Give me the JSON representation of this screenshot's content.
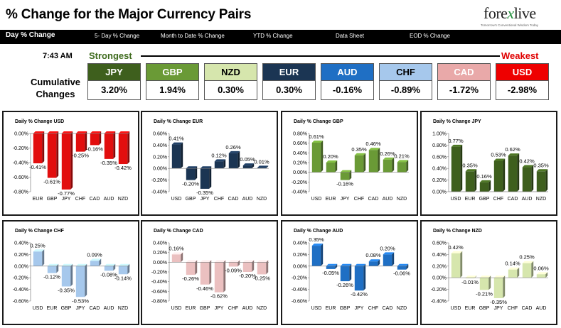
{
  "header": {
    "title": "% Change for the Major Currency Pairs",
    "logo": {
      "brand_left": "fore",
      "brand_x": "x",
      "brand_right": "live",
      "tagline": "Tomorrow's Conventional Wisdom Today"
    }
  },
  "nav": [
    {
      "label": "Day % Change",
      "active": true
    },
    {
      "label": "5- Day % Change"
    },
    {
      "label": "Month to Date % Change"
    },
    {
      "label": "YTD % Change"
    },
    {
      "label": "Data Sheet"
    },
    {
      "label": "EOD % Change"
    }
  ],
  "strength": {
    "time": "7:43 AM",
    "strongest": "Strongest",
    "weakest": "Weakest",
    "cumulative_label": "Cumulative Changes",
    "currencies": [
      {
        "code": "JPY",
        "value": "3.20%",
        "color": "#3e5f1d",
        "text_color": "#ffffff"
      },
      {
        "code": "GBP",
        "value": "1.94%",
        "color": "#6a9a36",
        "text_color": "#ffffff"
      },
      {
        "code": "NZD",
        "value": "0.30%",
        "color": "#d6e6ad",
        "text_color": "#000000"
      },
      {
        "code": "EUR",
        "value": "0.30%",
        "color": "#1b3553",
        "text_color": "#ffffff"
      },
      {
        "code": "AUD",
        "value": "-0.16%",
        "color": "#1f6fc4",
        "text_color": "#ffffff"
      },
      {
        "code": "CHF",
        "value": "-0.89%",
        "color": "#a6c8ec",
        "text_color": "#000000"
      },
      {
        "code": "CAD",
        "value": "-1.72%",
        "color": "#e9a9a9",
        "text_color": "#ffffff"
      },
      {
        "code": "USD",
        "value": "-2.98%",
        "color": "#ee0000",
        "text_color": "#ffffff"
      }
    ]
  },
  "chart_data": [
    {
      "type": "bar",
      "title": "Daily % Change USD",
      "color": "#e20e0e",
      "categories": [
        "EUR",
        "GBP",
        "JPY",
        "CHF",
        "CAD",
        "AUD",
        "NZD"
      ],
      "values": [
        -0.41,
        -0.61,
        -0.77,
        -0.25,
        -0.16,
        -0.35,
        -0.42
      ],
      "labels": [
        "-0.41%",
        "-0.61%",
        "-0.77%",
        "-0.25%",
        "-0.16%",
        "-0.35%",
        "-0.42%"
      ],
      "ylim": [
        -0.8,
        0.0
      ],
      "ticks": [
        "0.00%",
        "-0.20%",
        "-0.40%",
        "-0.60%",
        "-0.80%"
      ]
    },
    {
      "type": "bar",
      "title": "Daily % Change EUR",
      "color": "#1b3553",
      "categories": [
        "USD",
        "GBP",
        "JPY",
        "CHF",
        "CAD",
        "AUD",
        "NZD"
      ],
      "values": [
        0.41,
        -0.2,
        -0.35,
        0.12,
        0.26,
        0.05,
        0.01
      ],
      "labels": [
        "0.41%",
        "-0.20%",
        "-0.35%",
        "0.12%",
        "0.26%",
        "0.05%",
        "0.01%"
      ],
      "ylim": [
        -0.4,
        0.6
      ],
      "ticks": [
        "0.60%",
        "0.40%",
        "0.20%",
        "0.00%",
        "-0.20%",
        "-0.40%"
      ]
    },
    {
      "type": "bar",
      "title": "Daily % Change GBP",
      "color": "#6a9a36",
      "categories": [
        "USD",
        "EUR",
        "JPY",
        "CHF",
        "CAD",
        "AUD",
        "NZD"
      ],
      "values": [
        0.61,
        0.2,
        -0.16,
        0.35,
        0.46,
        0.26,
        0.21
      ],
      "labels": [
        "0.61%",
        "0.20%",
        "-0.16%",
        "0.35%",
        "0.46%",
        "0.26%",
        "0.21%"
      ],
      "ylim": [
        -0.4,
        0.8
      ],
      "ticks": [
        "0.80%",
        "0.60%",
        "0.40%",
        "0.20%",
        "0.00%",
        "-0.20%",
        "-0.40%"
      ]
    },
    {
      "type": "bar",
      "title": "Daily % Change JPY",
      "color": "#3e5f1d",
      "categories": [
        "USD",
        "EUR",
        "GBP",
        "CHF",
        "CAD",
        "AUD",
        "NZD"
      ],
      "values": [
        0.77,
        0.35,
        0.16,
        0.53,
        0.62,
        0.42,
        0.35
      ],
      "labels": [
        "0.77%",
        "0.35%",
        "0.16%",
        "0.53%",
        "0.62%",
        "0.42%",
        "0.35%"
      ],
      "ylim": [
        0.0,
        1.0
      ],
      "ticks": [
        "1.00%",
        "0.80%",
        "0.60%",
        "0.40%",
        "0.20%",
        "0.00%"
      ]
    },
    {
      "type": "bar",
      "title": "Daily % Change CHF",
      "color": "#a6c8ec",
      "categories": [
        "USD",
        "EUR",
        "GBP",
        "JPY",
        "CAD",
        "AUD",
        "NZD"
      ],
      "values": [
        0.25,
        -0.12,
        -0.35,
        -0.53,
        0.09,
        -0.08,
        -0.14
      ],
      "labels": [
        "0.25%",
        "-0.12%",
        "-0.35%",
        "-0.53%",
        "0.09%",
        "-0.08%",
        "-0.14%"
      ],
      "ylim": [
        -0.6,
        0.4
      ],
      "ticks": [
        "0.40%",
        "0.20%",
        "0.00%",
        "-0.20%",
        "-0.40%",
        "-0.60%"
      ]
    },
    {
      "type": "bar",
      "title": "Daily % Change CAD",
      "color": "#ebc0c0",
      "categories": [
        "USD",
        "EUR",
        "GBP",
        "JPY",
        "CHF",
        "AUD",
        "NZD"
      ],
      "values": [
        0.16,
        -0.26,
        -0.46,
        -0.62,
        -0.09,
        -0.2,
        -0.25
      ],
      "labels": [
        "0.16%",
        "-0.26%",
        "-0.46%",
        "-0.62%",
        "-0.09%",
        "-0.20%",
        "-0.25%"
      ],
      "ylim": [
        -0.8,
        0.4
      ],
      "ticks": [
        "0.40%",
        "0.20%",
        "0.00%",
        "-0.20%",
        "-0.40%",
        "-0.60%",
        "-0.80%"
      ]
    },
    {
      "type": "bar",
      "title": "Daily % Change AUD",
      "color": "#1f6fc4",
      "categories": [
        "USD",
        "EUR",
        "GBP",
        "JPY",
        "CHF",
        "CAD",
        "NZD"
      ],
      "values": [
        0.35,
        -0.05,
        -0.26,
        -0.42,
        0.08,
        0.2,
        -0.06
      ],
      "labels": [
        "0.35%",
        "-0.05%",
        "-0.26%",
        "-0.42%",
        "0.08%",
        "0.20%",
        "-0.06%"
      ],
      "ylim": [
        -0.6,
        0.4
      ],
      "ticks": [
        "0.40%",
        "0.20%",
        "0.00%",
        "-0.20%",
        "-0.40%",
        "-0.60%"
      ]
    },
    {
      "type": "bar",
      "title": "Daily % Change NZD",
      "color": "#d6e6ad",
      "categories": [
        "USD",
        "EUR",
        "GBP",
        "JPY",
        "CHF",
        "CAD",
        "AUD"
      ],
      "values": [
        0.42,
        -0.01,
        -0.21,
        -0.35,
        0.14,
        0.25,
        0.06
      ],
      "labels": [
        "0.42%",
        "-0.01%",
        "-0.21%",
        "-0.35%",
        "0.14%",
        "0.25%",
        "0.06%"
      ],
      "ylim": [
        -0.4,
        0.6
      ],
      "ticks": [
        "0.60%",
        "0.40%",
        "0.20%",
        "0.00%",
        "-0.20%",
        "-0.40%"
      ]
    }
  ]
}
